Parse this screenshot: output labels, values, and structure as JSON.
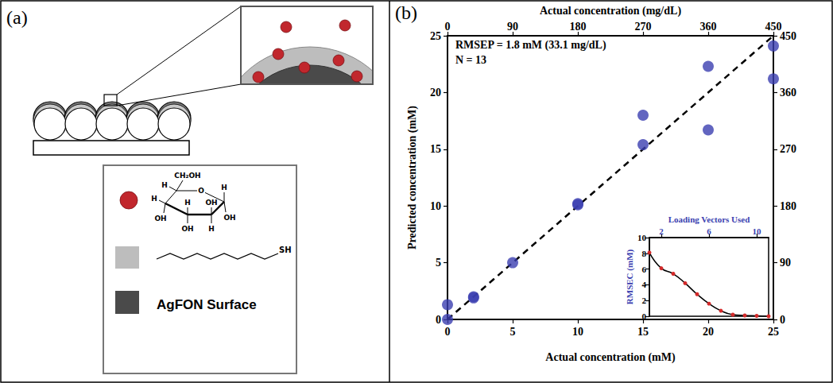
{
  "panels": [
    {
      "letter": "(a)",
      "diagram": {
        "glucose_labels": [
          "CH₂OH",
          "O",
          "H",
          "H",
          "OH",
          "H",
          "OH",
          "H",
          "OH",
          "OH",
          "H"
        ],
        "thiol_label": "SH",
        "surface_label": "AgFON Surface"
      }
    },
    {
      "letter": "(b)"
    }
  ],
  "chart_data": [
    {
      "type": "scatter",
      "x_label": "Actual concentration (mM)",
      "y_label": "Predicted concentration (mM)",
      "x2_label": "Actual concentration (mg/dL)",
      "xlim": [
        0,
        25
      ],
      "xticks": [
        0,
        5,
        10,
        15,
        20,
        25
      ],
      "ylim": [
        0,
        25
      ],
      "yticks": [
        0,
        5,
        10,
        15,
        20,
        25
      ],
      "x2lim": [
        0,
        450
      ],
      "x2ticks": [
        0,
        90,
        180,
        270,
        360,
        450
      ],
      "y2lim": [
        0,
        450
      ],
      "y2ticks": [
        0,
        90,
        180,
        270,
        360,
        450
      ],
      "grid": false,
      "annotations": [
        "RMSEP = 1.8 mM (33.1 mg/dL)",
        "N = 13"
      ],
      "series": [
        {
          "type": "scatter",
          "color": "#3b3fb0",
          "marker": "circle",
          "x": [
            0,
            0,
            2,
            2,
            5,
            10,
            10,
            15,
            15,
            20,
            20,
            25,
            25
          ],
          "values": [
            0,
            1.3,
            2,
            1.9,
            5,
            10.2,
            10.1,
            18,
            15.4,
            22.3,
            16.7,
            24.1,
            21.2
          ]
        },
        {
          "type": "line",
          "color": "#000000",
          "line_style": "dashed",
          "x": [
            0,
            25
          ],
          "values": [
            0,
            25
          ]
        }
      ]
    },
    {
      "type": "line",
      "x_label": "Loading Vectors Used",
      "y_label": "RMSEC (mM)",
      "xlim": [
        1,
        11
      ],
      "xticks": [
        2,
        6,
        10
      ],
      "ylim": [
        0,
        10
      ],
      "yticks": [
        0,
        2,
        4,
        6,
        8,
        10
      ],
      "grid": false,
      "series": [
        {
          "type": "line",
          "color": "#000000",
          "line_style": "solid",
          "marker": "circle",
          "colors": [
            "#d42a2a",
            "#d42a2a",
            "#d42a2a",
            "#d42a2a",
            "#d42a2a",
            "#d42a2a",
            "#d42a2a",
            "#d42a2a",
            "#d42a2a",
            "#d42a2a",
            "#d42a2a"
          ],
          "x": [
            1,
            2,
            3,
            4,
            5,
            6,
            7,
            8,
            9,
            10,
            11
          ],
          "values": [
            8.1,
            6.1,
            5.4,
            4.2,
            2.8,
            1.6,
            0.7,
            0.2,
            0.1,
            0.05,
            0
          ]
        }
      ]
    }
  ]
}
